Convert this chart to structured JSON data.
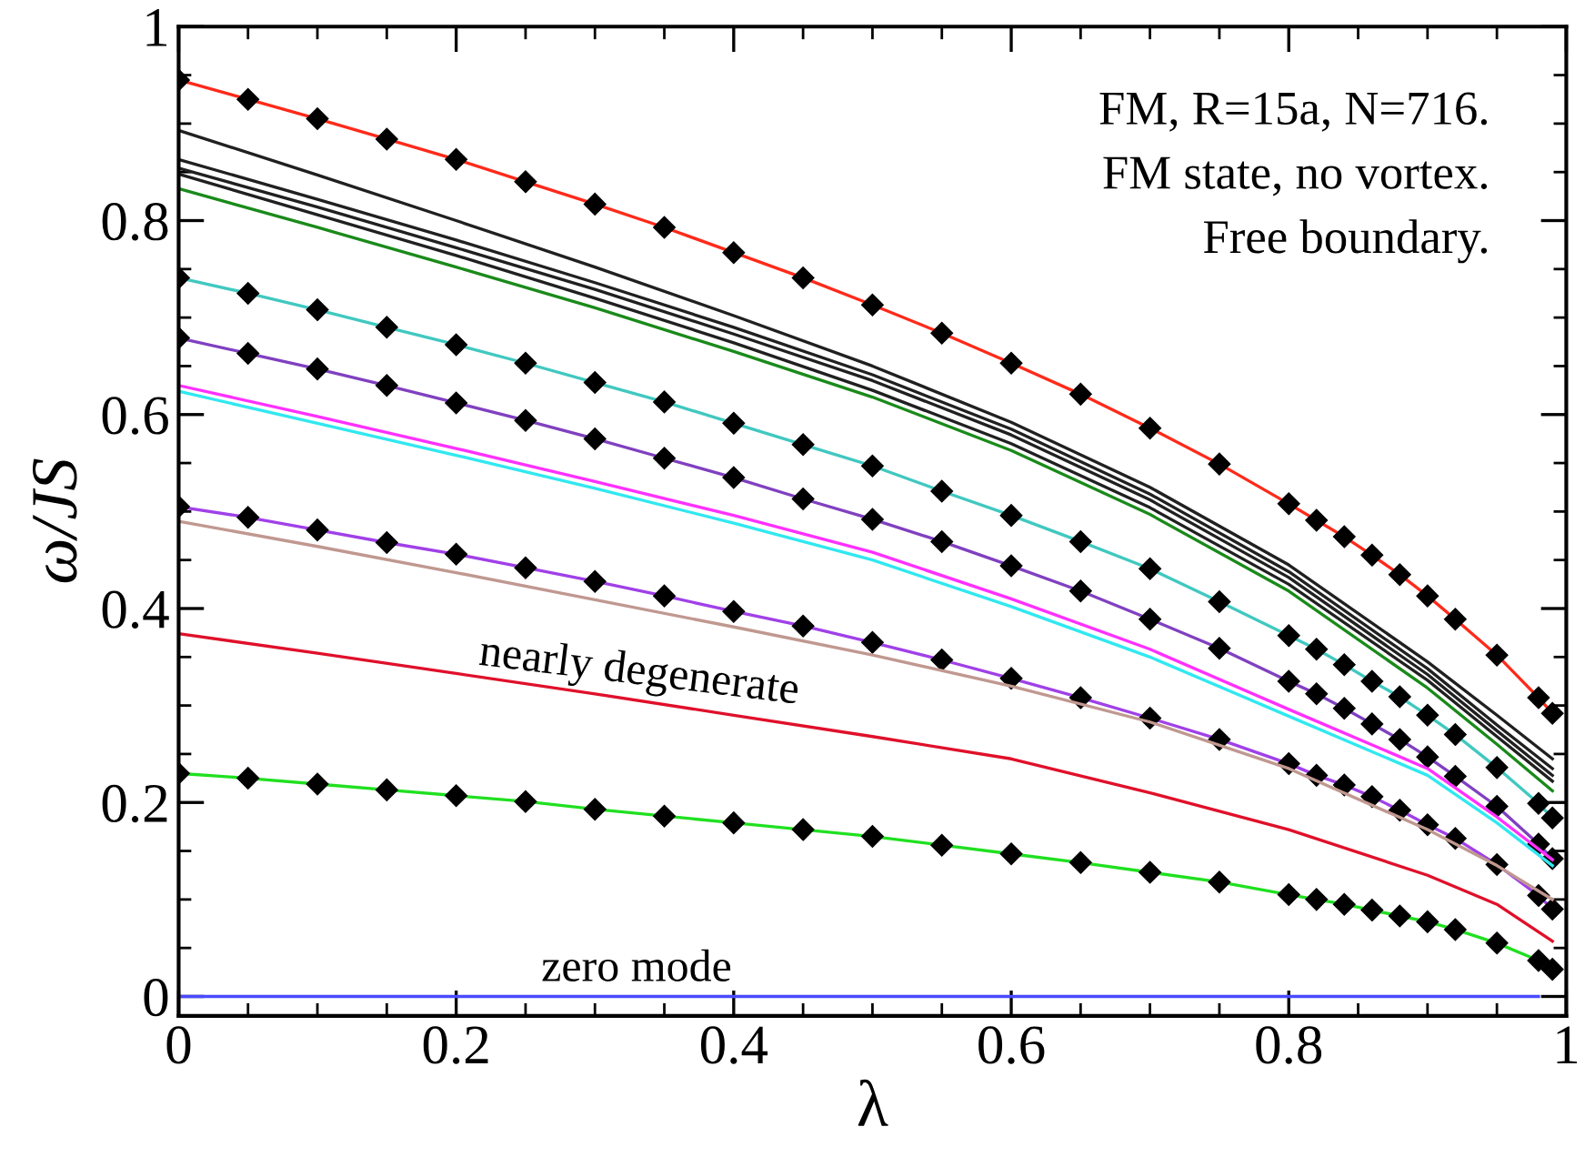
{
  "chart_data": {
    "type": "line",
    "xlabel": "λ",
    "ylabel": "ω/JS",
    "xlim": [
      0,
      1
    ],
    "ylim": [
      -0.02,
      1
    ],
    "xticks": [
      0,
      0.2,
      0.4,
      0.6,
      0.8,
      1
    ],
    "yticks": [
      0,
      0.2,
      0.4,
      0.6,
      0.8,
      1
    ],
    "grid": false,
    "legend": false,
    "line_style": "solid",
    "annotations": [
      "FM, R=15a, N=716.",
      "FM state, no vortex.",
      "Free boundary.",
      {
        "text": "nearly degenerate",
        "x": 0.33,
        "y": 0.306
      },
      {
        "text": "zero mode",
        "x": 0.33,
        "y": 0.0
      }
    ],
    "series": [
      {
        "color": "#ff2a1a",
        "marker": "diamond",
        "x": [
          0,
          0.05,
          0.1,
          0.15,
          0.2,
          0.25,
          0.3,
          0.35,
          0.4,
          0.45,
          0.5,
          0.55,
          0.6,
          0.65,
          0.7,
          0.75,
          0.8,
          0.82,
          0.84,
          0.86,
          0.88,
          0.9,
          0.92,
          0.95,
          0.98,
          0.99
        ],
        "values": [
          0.945,
          0.925,
          0.905,
          0.884,
          0.863,
          0.84,
          0.817,
          0.793,
          0.767,
          0.741,
          0.713,
          0.684,
          0.653,
          0.621,
          0.586,
          0.549,
          0.508,
          0.491,
          0.474,
          0.455,
          0.435,
          0.413,
          0.389,
          0.352,
          0.308,
          0.292
        ]
      },
      {
        "color": "#202020",
        "marker": "none",
        "x": [
          0,
          0.1,
          0.2,
          0.3,
          0.4,
          0.5,
          0.6,
          0.7,
          0.8,
          0.9,
          0.95,
          0.99
        ],
        "values": [
          0.893,
          0.847,
          0.8,
          0.752,
          0.702,
          0.65,
          0.592,
          0.525,
          0.445,
          0.345,
          0.29,
          0.245
        ]
      },
      {
        "color": "#202020",
        "marker": "none",
        "x": [
          0,
          0.1,
          0.2,
          0.3,
          0.4,
          0.5,
          0.6,
          0.7,
          0.8,
          0.9,
          0.95,
          0.99
        ],
        "values": [
          0.863,
          0.822,
          0.78,
          0.736,
          0.69,
          0.641,
          0.585,
          0.518,
          0.438,
          0.338,
          0.28,
          0.235
        ]
      },
      {
        "color": "#202020",
        "marker": "none",
        "x": [
          0,
          0.1,
          0.2,
          0.3,
          0.4,
          0.5,
          0.6,
          0.7,
          0.8,
          0.9,
          0.95,
          0.99
        ],
        "values": [
          0.854,
          0.814,
          0.772,
          0.729,
          0.683,
          0.635,
          0.579,
          0.512,
          0.432,
          0.332,
          0.274,
          0.228
        ]
      },
      {
        "color": "#202020",
        "marker": "none",
        "x": [
          0,
          0.1,
          0.2,
          0.3,
          0.4,
          0.5,
          0.6,
          0.7,
          0.8,
          0.9,
          0.95,
          0.99
        ],
        "values": [
          0.848,
          0.806,
          0.764,
          0.72,
          0.674,
          0.625,
          0.57,
          0.504,
          0.425,
          0.326,
          0.268,
          0.222
        ]
      },
      {
        "color": "#1a8a1a",
        "marker": "none",
        "x": [
          0,
          0.1,
          0.2,
          0.3,
          0.4,
          0.5,
          0.6,
          0.7,
          0.8,
          0.9,
          0.95,
          0.99
        ],
        "values": [
          0.833,
          0.793,
          0.752,
          0.71,
          0.665,
          0.618,
          0.563,
          0.497,
          0.418,
          0.318,
          0.26,
          0.212
        ]
      },
      {
        "color": "#40c8c0",
        "marker": "diamond",
        "x": [
          0,
          0.05,
          0.1,
          0.15,
          0.2,
          0.25,
          0.3,
          0.35,
          0.4,
          0.45,
          0.5,
          0.55,
          0.6,
          0.65,
          0.7,
          0.75,
          0.8,
          0.82,
          0.84,
          0.86,
          0.88,
          0.9,
          0.92,
          0.95,
          0.98,
          0.99
        ],
        "values": [
          0.741,
          0.725,
          0.708,
          0.69,
          0.672,
          0.653,
          0.633,
          0.613,
          0.591,
          0.569,
          0.547,
          0.521,
          0.496,
          0.469,
          0.441,
          0.407,
          0.372,
          0.358,
          0.342,
          0.325,
          0.309,
          0.29,
          0.27,
          0.236,
          0.199,
          0.184
        ]
      },
      {
        "color": "#8040c0",
        "marker": "diamond",
        "x": [
          0,
          0.05,
          0.1,
          0.15,
          0.2,
          0.25,
          0.3,
          0.35,
          0.4,
          0.45,
          0.5,
          0.55,
          0.6,
          0.65,
          0.7,
          0.75,
          0.8,
          0.82,
          0.84,
          0.86,
          0.88,
          0.9,
          0.92,
          0.95,
          0.98,
          0.99
        ],
        "values": [
          0.679,
          0.663,
          0.647,
          0.63,
          0.612,
          0.594,
          0.575,
          0.555,
          0.535,
          0.513,
          0.492,
          0.469,
          0.444,
          0.418,
          0.389,
          0.359,
          0.325,
          0.312,
          0.297,
          0.281,
          0.265,
          0.247,
          0.227,
          0.196,
          0.157,
          0.142
        ]
      },
      {
        "color": "#ff30ff",
        "marker": "none",
        "x": [
          0,
          0.1,
          0.2,
          0.3,
          0.4,
          0.5,
          0.6,
          0.7,
          0.8,
          0.9,
          0.95,
          0.99
        ],
        "values": [
          0.63,
          0.598,
          0.565,
          0.531,
          0.496,
          0.458,
          0.41,
          0.358,
          0.296,
          0.235,
          0.185,
          0.141
        ]
      },
      {
        "color": "#30e8f0",
        "marker": "none",
        "x": [
          0,
          0.1,
          0.2,
          0.3,
          0.4,
          0.5,
          0.6,
          0.7,
          0.8,
          0.9,
          0.95,
          0.99
        ],
        "values": [
          0.624,
          0.591,
          0.558,
          0.524,
          0.488,
          0.45,
          0.402,
          0.35,
          0.289,
          0.228,
          0.179,
          0.135
        ]
      },
      {
        "color": "#a040e8",
        "marker": "diamond",
        "x": [
          0,
          0.05,
          0.1,
          0.15,
          0.2,
          0.25,
          0.3,
          0.35,
          0.4,
          0.45,
          0.5,
          0.55,
          0.6,
          0.65,
          0.7,
          0.75,
          0.8,
          0.82,
          0.84,
          0.86,
          0.88,
          0.9,
          0.92,
          0.95,
          0.98,
          0.99
        ],
        "values": [
          0.505,
          0.494,
          0.481,
          0.468,
          0.456,
          0.442,
          0.428,
          0.413,
          0.397,
          0.382,
          0.365,
          0.347,
          0.328,
          0.308,
          0.287,
          0.265,
          0.24,
          0.228,
          0.218,
          0.206,
          0.192,
          0.177,
          0.163,
          0.136,
          0.104,
          0.09
        ]
      },
      {
        "color": "#c09890",
        "marker": "none",
        "x": [
          0,
          0.1,
          0.2,
          0.3,
          0.4,
          0.5,
          0.6,
          0.7,
          0.8,
          0.9,
          0.95,
          0.99
        ],
        "values": [
          0.49,
          0.464,
          0.437,
          0.409,
          0.381,
          0.352,
          0.32,
          0.283,
          0.235,
          0.172,
          0.135,
          0.1
        ]
      },
      {
        "color": "#e0102a",
        "marker": "none",
        "x": [
          0,
          0.1,
          0.2,
          0.3,
          0.4,
          0.5,
          0.6,
          0.7,
          0.8,
          0.9,
          0.95,
          0.99
        ],
        "values": [
          0.374,
          0.354,
          0.333,
          0.312,
          0.29,
          0.268,
          0.245,
          0.21,
          0.172,
          0.125,
          0.095,
          0.057
        ]
      },
      {
        "color": "#20e020",
        "marker": "diamond",
        "x": [
          0,
          0.05,
          0.1,
          0.15,
          0.2,
          0.25,
          0.3,
          0.35,
          0.4,
          0.45,
          0.5,
          0.55,
          0.6,
          0.65,
          0.7,
          0.75,
          0.8,
          0.82,
          0.84,
          0.86,
          0.88,
          0.9,
          0.92,
          0.95,
          0.98,
          0.99
        ],
        "values": [
          0.23,
          0.225,
          0.219,
          0.213,
          0.207,
          0.201,
          0.193,
          0.186,
          0.179,
          0.172,
          0.165,
          0.156,
          0.147,
          0.138,
          0.128,
          0.118,
          0.105,
          0.1,
          0.095,
          0.089,
          0.083,
          0.077,
          0.069,
          0.055,
          0.037,
          0.028
        ]
      },
      {
        "color": "#4a4aff",
        "marker": "none",
        "x": [
          0,
          0.98
        ],
        "values": [
          0,
          0
        ]
      }
    ]
  }
}
